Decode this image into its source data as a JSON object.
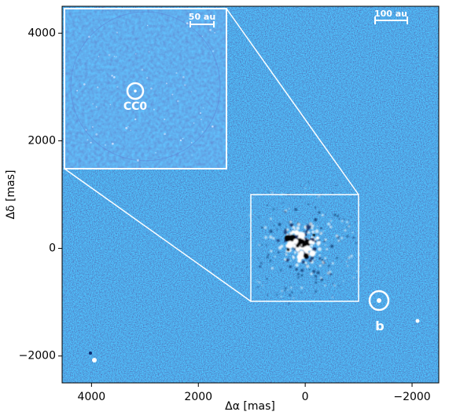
{
  "chart_data": {
    "type": "image",
    "xlabel": "Δα [mas]",
    "ylabel": "Δδ [mas]",
    "xlim": [
      4550,
      -2500
    ],
    "ylim": [
      -2500,
      4500
    ],
    "xticks": [
      4000,
      2000,
      0,
      {
        "value": -2000,
        "label": "−2000"
      }
    ],
    "yticks": [
      {
        "value": -2000,
        "label": "−2000"
      },
      0,
      2000,
      4000
    ],
    "annotations": [
      "100 au",
      "50 au",
      "CC0",
      "b"
    ]
  }
}
